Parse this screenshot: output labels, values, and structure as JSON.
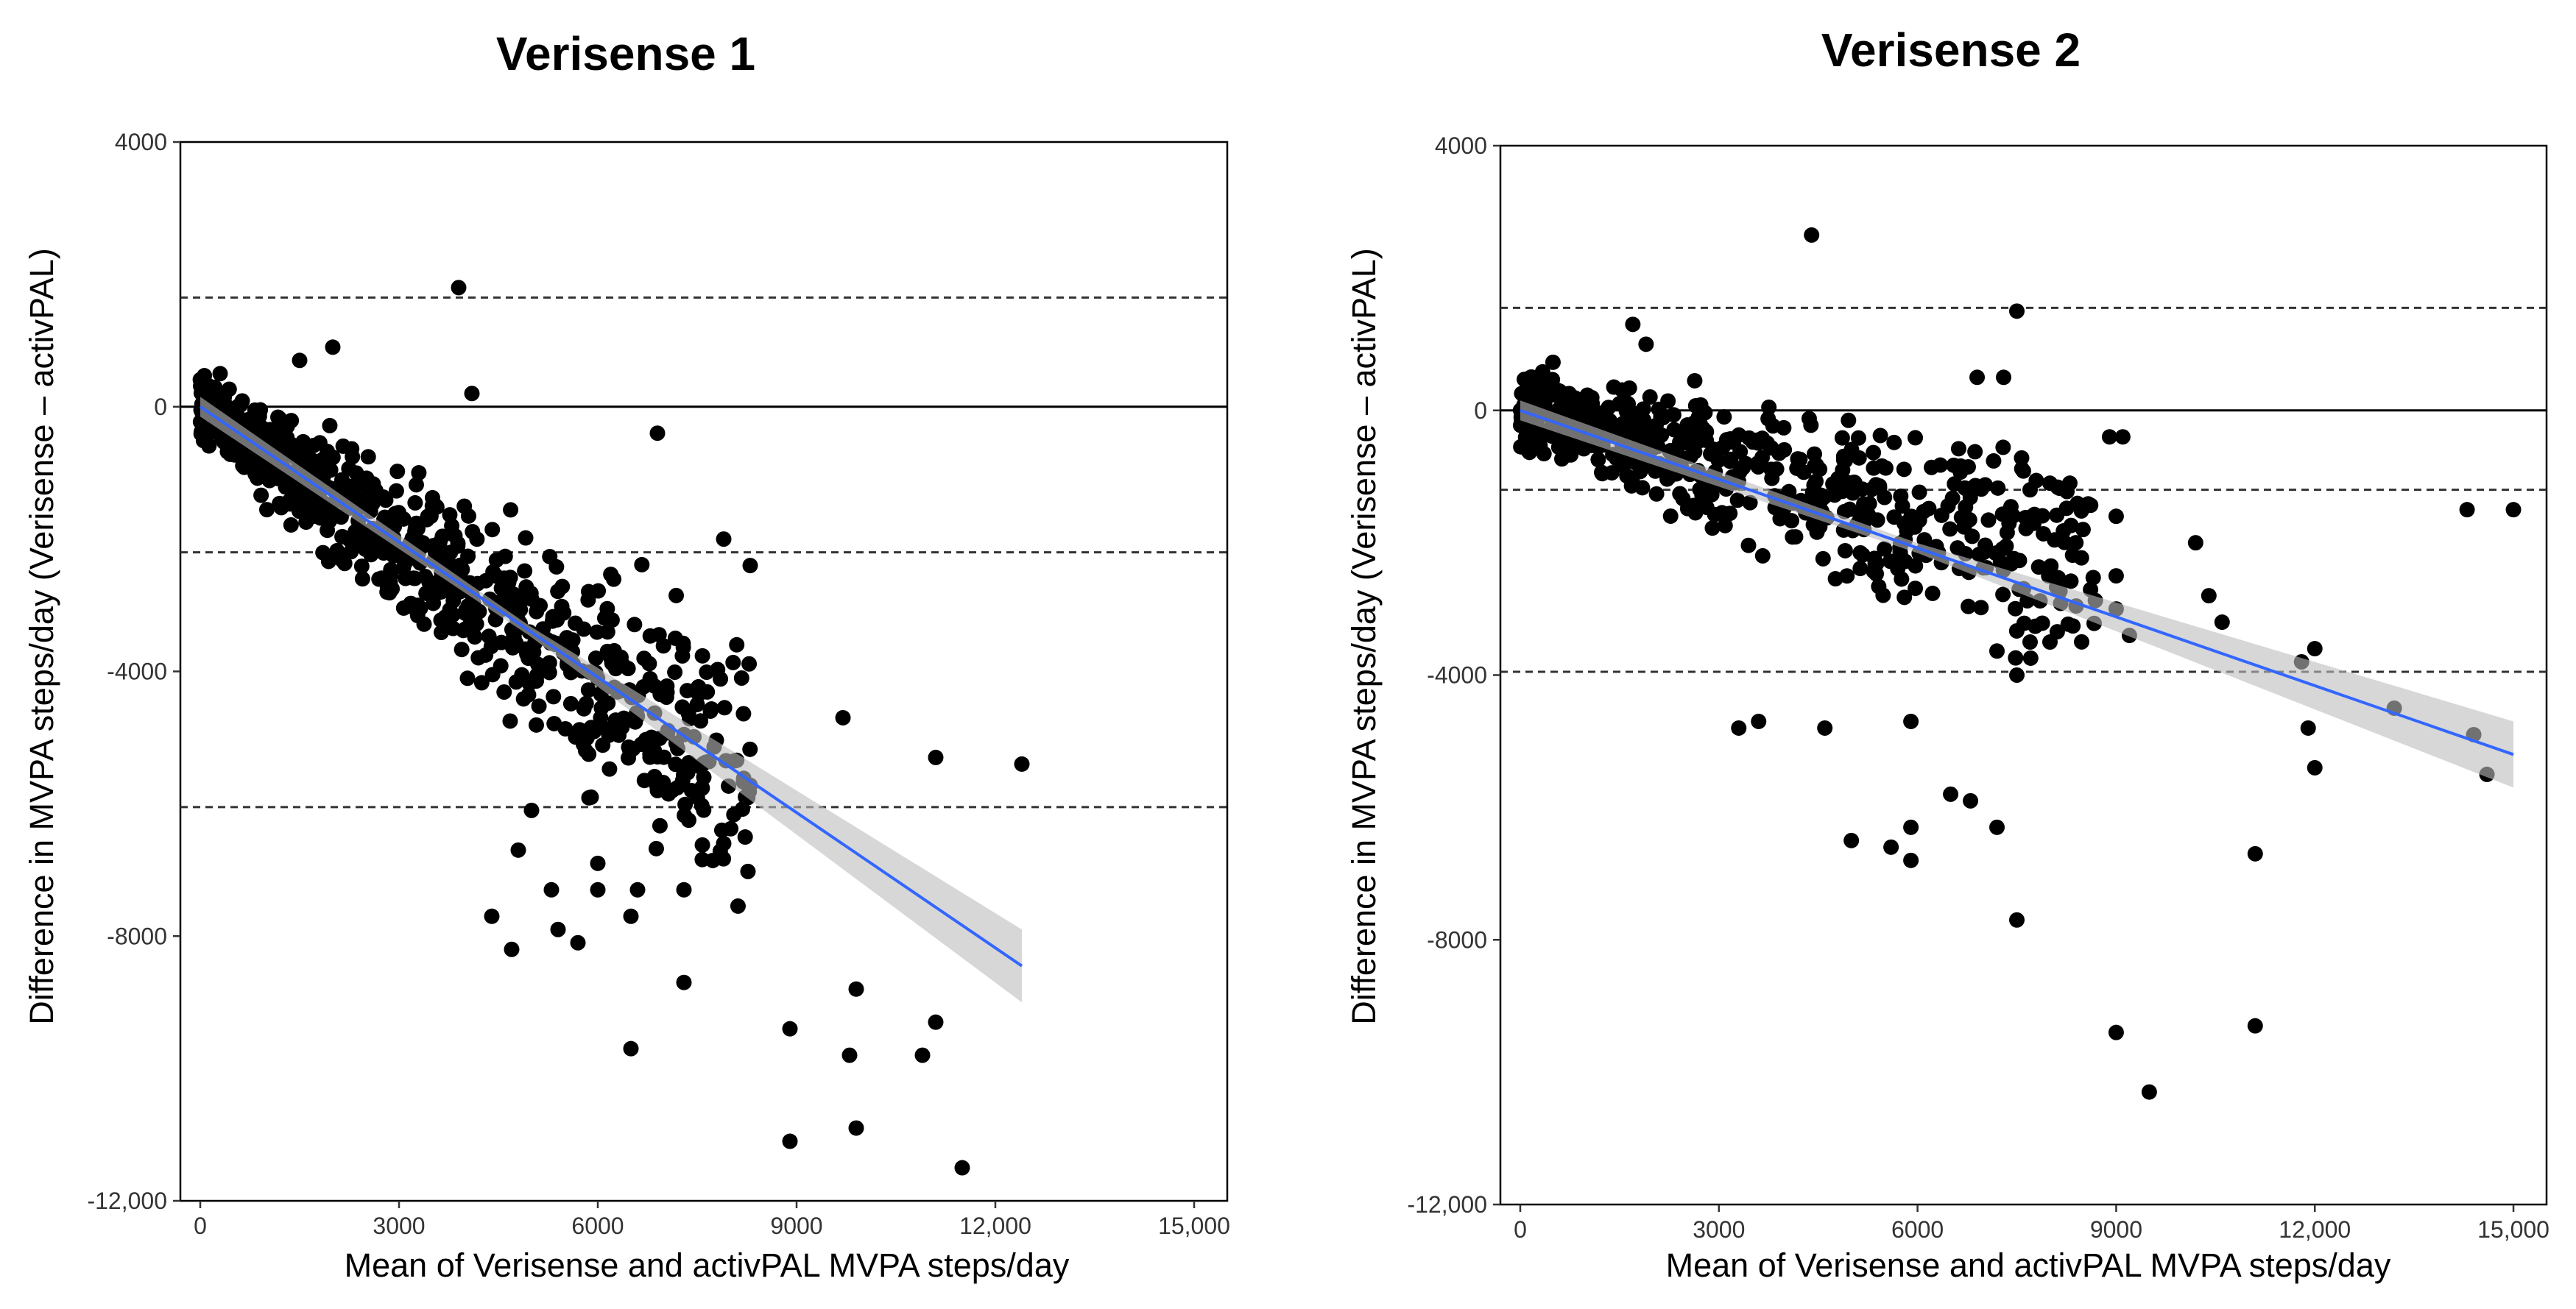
{
  "chart_data": [
    {
      "type": "scatter",
      "title": "Verisense 1",
      "xlabel": "Mean of Verisense and activPAL MVPA steps/day",
      "ylabel": "Difference in MVPA steps/day (Verisense – activPAL)",
      "xlim": [
        -300,
        15500
      ],
      "ylim": [
        -12000,
        4000
      ],
      "x_ticks": [
        0,
        3000,
        6000,
        9000,
        12000,
        15000
      ],
      "x_tick_labels": [
        "0",
        "3000",
        "6000",
        "9000",
        "12,000",
        "15,000"
      ],
      "y_ticks": [
        4000,
        0,
        -4000,
        -8000,
        -12000
      ],
      "y_tick_labels": [
        "4000",
        "0",
        "-4000",
        "-8000",
        "-12,000"
      ],
      "zero_line": 0,
      "limits_of_agreement": [
        1650,
        -2200,
        -6050
      ],
      "regression": {
        "x": [
          0,
          12400
        ],
        "y": [
          0,
          -8450
        ],
        "ci_halfwidth_start": 150,
        "ci_halfwidth_end": 550
      },
      "cluster": {
        "x_range": [
          0,
          8300
        ],
        "slope": -0.68,
        "spread_base": 350,
        "spread_rate": 0.14,
        "n": 780
      },
      "points": [
        [
          3900,
          1800
        ],
        [
          4100,
          200
        ],
        [
          6900,
          -400
        ],
        [
          2000,
          900
        ],
        [
          1500,
          700
        ],
        [
          300,
          500
        ],
        [
          7900,
          -2000
        ],
        [
          8300,
          -2400
        ],
        [
          7500,
          -4500
        ],
        [
          7700,
          -4600
        ],
        [
          7600,
          -5600
        ],
        [
          7900,
          -6600
        ],
        [
          6900,
          -5800
        ],
        [
          7300,
          -7300
        ],
        [
          6500,
          -7700
        ],
        [
          6600,
          -7300
        ],
        [
          6000,
          -7300
        ],
        [
          6000,
          -6900
        ],
        [
          5700,
          -8100
        ],
        [
          5400,
          -7900
        ],
        [
          5300,
          -7300
        ],
        [
          4700,
          -8200
        ],
        [
          4400,
          -7700
        ],
        [
          4800,
          -6700
        ],
        [
          5000,
          -6100
        ],
        [
          5900,
          -5900
        ],
        [
          7300,
          -8700
        ],
        [
          6500,
          -9700
        ],
        [
          8900,
          -9400
        ],
        [
          9900,
          -8800
        ],
        [
          9800,
          -9800
        ],
        [
          8900,
          -11100
        ],
        [
          9900,
          -10900
        ],
        [
          11500,
          -11500
        ],
        [
          10900,
          -9800
        ],
        [
          11100,
          -9300
        ],
        [
          9700,
          -4700
        ],
        [
          11100,
          -5300
        ],
        [
          12400,
          -5400
        ]
      ]
    },
    {
      "type": "scatter",
      "title": "Verisense 2",
      "xlabel": "Mean of Verisense and activPAL MVPA steps/day",
      "ylabel": "Difference in MVPA steps/day (Verisense – activPAL)",
      "xlim": [
        -300,
        15500
      ],
      "ylim": [
        -12000,
        4000
      ],
      "x_ticks": [
        0,
        3000,
        6000,
        9000,
        12000,
        15000
      ],
      "x_tick_labels": [
        "0",
        "3000",
        "6000",
        "9000",
        "12,000",
        "15,000"
      ],
      "y_ticks": [
        4000,
        0,
        -4000,
        -8000,
        -12000
      ],
      "y_tick_labels": [
        "4000",
        "0",
        "-4000",
        "-8000",
        "-12,000"
      ],
      "zero_line": 0,
      "limits_of_agreement": [
        1550,
        -1200,
        -3950
      ],
      "regression": {
        "x": [
          0,
          15000
        ],
        "y": [
          0,
          -5200
        ],
        "ci_halfwidth_start": 150,
        "ci_halfwidth_end": 500
      },
      "cluster": {
        "x_range": [
          0,
          8700
        ],
        "slope": -0.28,
        "spread_base": 450,
        "spread_rate": 0.09,
        "n": 560
      },
      "points": [
        [
          4400,
          2650
        ],
        [
          7500,
          1500
        ],
        [
          7300,
          500
        ],
        [
          6900,
          500
        ],
        [
          1700,
          1300
        ],
        [
          1900,
          1000
        ],
        [
          9100,
          -400
        ],
        [
          8900,
          -400
        ],
        [
          7700,
          -1200
        ],
        [
          8000,
          -1100
        ],
        [
          8300,
          -1100
        ],
        [
          8500,
          -1800
        ],
        [
          8000,
          -3500
        ],
        [
          7700,
          -3500
        ],
        [
          7500,
          -4000
        ],
        [
          9000,
          -1600
        ],
        [
          9000,
          -2500
        ],
        [
          9000,
          -3000
        ],
        [
          9200,
          -3400
        ],
        [
          10200,
          -2000
        ],
        [
          10400,
          -2800
        ],
        [
          10600,
          -3200
        ],
        [
          11800,
          -3800
        ],
        [
          12000,
          -3600
        ],
        [
          11900,
          -4800
        ],
        [
          12000,
          -5400
        ],
        [
          13200,
          -4500
        ],
        [
          14300,
          -1500
        ],
        [
          15000,
          -1500
        ],
        [
          14400,
          -4900
        ],
        [
          14600,
          -5500
        ],
        [
          11100,
          -6700
        ],
        [
          11100,
          -9300
        ],
        [
          9000,
          -9400
        ],
        [
          9500,
          -10300
        ],
        [
          7500,
          -7700
        ],
        [
          7200,
          -6300
        ],
        [
          6800,
          -5900
        ],
        [
          6500,
          -5800
        ],
        [
          5900,
          -6800
        ],
        [
          5600,
          -6600
        ],
        [
          5000,
          -6500
        ],
        [
          5900,
          -6300
        ],
        [
          3600,
          -4700
        ],
        [
          3300,
          -4800
        ],
        [
          4600,
          -4800
        ],
        [
          5900,
          -4700
        ]
      ]
    }
  ]
}
